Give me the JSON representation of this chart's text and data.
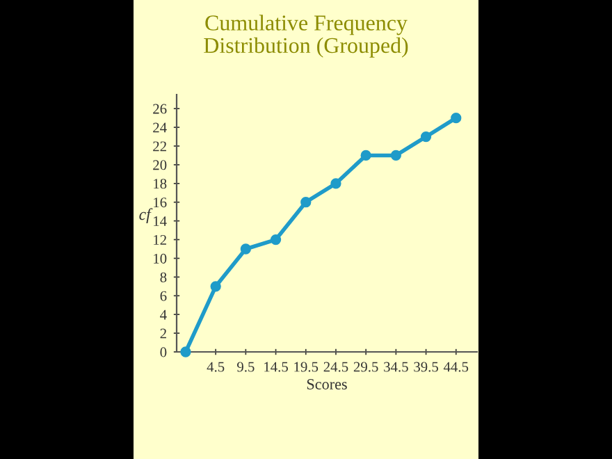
{
  "chart_data": {
    "type": "line",
    "title": "Cumulative Frequency\nDistribution (Grouped)",
    "xlabel": "Scores",
    "ylabel": "cf",
    "x": [
      -0.5,
      4.5,
      9.5,
      14.5,
      19.5,
      24.5,
      29.5,
      34.5,
      39.5,
      44.5
    ],
    "series": [
      {
        "color": "#1f9bc9",
        "values": [
          0,
          7,
          11,
          12,
          16,
          18,
          21,
          21,
          23,
          25
        ]
      }
    ],
    "xlim": [
      -2,
      48
    ],
    "xticks": [
      4.5,
      9.5,
      14.5,
      19.5,
      24.5,
      29.5,
      34.5,
      39.5,
      44.5
    ],
    "ylim": [
      0,
      27.5
    ],
    "yticks": [
      0,
      2,
      4,
      6,
      8,
      10,
      12,
      14,
      16,
      18,
      20,
      22,
      24,
      26
    ],
    "marker": "circle",
    "line_style": "solid",
    "grid": false,
    "legend": false
  }
}
